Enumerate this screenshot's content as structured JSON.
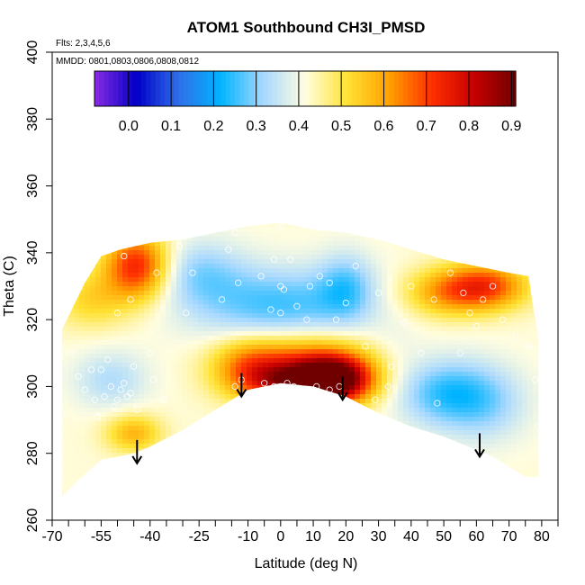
{
  "chart_data": {
    "type": "heatmap",
    "title": "ATOM1 Southbound CH3I_PMSD",
    "flights_note": "Flts: 2,3,4,5,6",
    "dates_note": "MMDD: 0801,0803,0806,0808,0812",
    "xlabel": "Latitude (deg N)",
    "ylabel": "Theta (C)",
    "xlim": [
      -70,
      85
    ],
    "ylim": [
      260,
      400
    ],
    "x_ticks_labeled": [
      -70,
      -55,
      -40,
      -25,
      -10,
      0,
      10,
      20,
      30,
      40,
      50,
      60,
      70,
      80
    ],
    "x_ticks_minor": [
      -65,
      -60,
      -50,
      -45,
      -35,
      -30,
      -20,
      -15,
      -5,
      5,
      15,
      25,
      35,
      45,
      55,
      65,
      75,
      85
    ],
    "y_ticks": [
      260,
      280,
      300,
      320,
      340,
      360,
      380,
      400
    ],
    "colorbar": {
      "min": -0.08,
      "max": 0.91,
      "ticks": [
        0.0,
        0.1,
        0.2,
        0.3,
        0.4,
        0.5,
        0.6,
        0.7,
        0.8,
        0.9
      ],
      "colors": [
        "#8a2be2",
        "#0000c8",
        "#2f6fe8",
        "#00b4ff",
        "#a6d8ff",
        "#fffde0",
        "#ffe234",
        "#ffa000",
        "#ff3000",
        "#c80000",
        "#700000"
      ]
    },
    "coverage": {
      "top": [
        [
          -67,
          317
        ],
        [
          -60,
          331
        ],
        [
          -55,
          339
        ],
        [
          -49,
          341
        ],
        [
          -40,
          343
        ],
        [
          -30,
          344
        ],
        [
          -20,
          346
        ],
        [
          -10,
          348
        ],
        [
          0,
          349
        ],
        [
          10,
          347
        ],
        [
          20,
          346
        ],
        [
          30,
          344
        ],
        [
          40,
          341
        ],
        [
          50,
          338
        ],
        [
          60,
          336
        ],
        [
          70,
          334
        ],
        [
          76,
          333
        ],
        [
          77,
          326
        ],
        [
          79,
          315
        ],
        [
          79,
          273
        ]
      ],
      "bottom": [
        [
          -67,
          267
        ],
        [
          -62,
          272
        ],
        [
          -55,
          278
        ],
        [
          -45,
          280
        ],
        [
          -40,
          282
        ],
        [
          -30,
          287
        ],
        [
          -20,
          293
        ],
        [
          -10,
          299
        ],
        [
          0,
          301
        ],
        [
          10,
          300
        ],
        [
          20,
          297
        ],
        [
          30,
          292
        ],
        [
          40,
          288
        ],
        [
          50,
          285
        ],
        [
          60,
          281
        ],
        [
          65,
          279
        ],
        [
          70,
          276
        ],
        [
          75,
          273
        ],
        [
          79,
          273
        ]
      ]
    },
    "anomalies": [
      {
        "lat": -44,
        "theta": 336,
        "value": 0.74,
        "sx": 7,
        "sy": 7
      },
      {
        "lat": 17,
        "theta": 302,
        "value": 0.84,
        "sx": 8,
        "sy": 5
      },
      {
        "lat": 7,
        "theta": 306,
        "value": 0.68,
        "sx": 14,
        "sy": 7
      },
      {
        "lat": 4,
        "theta": 301,
        "value": 0.66,
        "sx": 10,
        "sy": 4
      },
      {
        "lat": -10,
        "theta": 306,
        "value": 0.58,
        "sx": 8,
        "sy": 6
      },
      {
        "lat": 63,
        "theta": 330,
        "value": 0.69,
        "sx": 9,
        "sy": 5
      },
      {
        "lat": 50,
        "theta": 328,
        "value": 0.58,
        "sx": 9,
        "sy": 5
      },
      {
        "lat": -45,
        "theta": 286,
        "value": 0.58,
        "sx": 6,
        "sy": 4
      },
      {
        "lat": -58,
        "theta": 326,
        "value": 0.53,
        "sx": 8,
        "sy": 6
      },
      {
        "lat": 0,
        "theta": 324,
        "value": 0.25,
        "sx": 18,
        "sy": 8
      },
      {
        "lat": -25,
        "theta": 334,
        "value": 0.31,
        "sx": 10,
        "sy": 7
      },
      {
        "lat": 50,
        "theta": 298,
        "value": 0.26,
        "sx": 10,
        "sy": 7
      },
      {
        "lat": 63,
        "theta": 295,
        "value": 0.32,
        "sx": 9,
        "sy": 8
      },
      {
        "lat": 20,
        "theta": 330,
        "value": 0.3,
        "sx": 6,
        "sy": 7
      },
      {
        "lat": -52,
        "theta": 302,
        "value": 0.33,
        "sx": 8,
        "sy": 6
      },
      {
        "lat": 35,
        "theta": 312,
        "value": 0.4,
        "sx": 6,
        "sy": 6
      }
    ],
    "background_value": 0.42,
    "sample_points": [
      [
        -67,
        292
      ],
      [
        -64,
        310
      ],
      [
        -62,
        303
      ],
      [
        -60,
        299
      ],
      [
        -58,
        305
      ],
      [
        -57,
        296
      ],
      [
        -56,
        291
      ],
      [
        -55,
        305
      ],
      [
        -54,
        297
      ],
      [
        -53,
        308
      ],
      [
        -52,
        300
      ],
      [
        -51,
        294
      ],
      [
        -50,
        296
      ],
      [
        -49,
        299
      ],
      [
        -48,
        301
      ],
      [
        -47,
        297
      ],
      [
        -46,
        298
      ],
      [
        -45,
        306
      ],
      [
        -44,
        293
      ],
      [
        -40,
        310
      ],
      [
        -39,
        302
      ],
      [
        -36,
        296
      ],
      [
        -50,
        322
      ],
      [
        -48,
        339
      ],
      [
        -46,
        326
      ],
      [
        -38,
        334
      ],
      [
        -31,
        342
      ],
      [
        -29,
        322
      ],
      [
        -27,
        334
      ],
      [
        -18,
        326
      ],
      [
        -16,
        341
      ],
      [
        -13,
        331
      ],
      [
        -6,
        333
      ],
      [
        -14,
        346
      ],
      [
        -3,
        323
      ],
      [
        -2,
        338
      ],
      [
        0,
        348
      ],
      [
        0,
        330
      ],
      [
        0,
        322
      ],
      [
        1,
        329
      ],
      [
        3,
        338
      ],
      [
        5,
        324
      ],
      [
        8,
        320
      ],
      [
        9,
        330
      ],
      [
        12,
        333
      ],
      [
        15,
        331
      ],
      [
        17,
        320
      ],
      [
        -14,
        300
      ],
      [
        -12,
        302
      ],
      [
        -5,
        301
      ],
      [
        -2,
        300
      ],
      [
        2,
        301
      ],
      [
        4,
        300
      ],
      [
        11,
        300
      ],
      [
        15,
        299
      ],
      [
        18,
        300
      ],
      [
        29,
        296
      ],
      [
        33,
        300
      ],
      [
        20,
        325
      ],
      [
        23,
        336
      ],
      [
        26,
        312
      ],
      [
        30,
        328
      ],
      [
        34,
        306
      ],
      [
        38,
        319
      ],
      [
        40,
        330
      ],
      [
        43,
        310
      ],
      [
        47,
        326
      ],
      [
        48,
        295
      ],
      [
        52,
        334
      ],
      [
        55,
        310
      ],
      [
        56,
        328
      ],
      [
        58,
        322
      ],
      [
        60,
        318
      ],
      [
        62,
        326
      ],
      [
        65,
        330
      ],
      [
        68,
        320
      ],
      [
        72,
        315
      ],
      [
        76,
        312
      ],
      [
        78,
        302
      ],
      [
        79,
        288
      ]
    ],
    "arrows": [
      {
        "lat": -44,
        "theta_top": 284,
        "theta_bottom": 277
      },
      {
        "lat": -12,
        "theta_top": 304,
        "theta_bottom": 297
      },
      {
        "lat": 19,
        "theta_top": 303,
        "theta_bottom": 296
      },
      {
        "lat": 61,
        "theta_top": 286,
        "theta_bottom": 279
      }
    ]
  }
}
